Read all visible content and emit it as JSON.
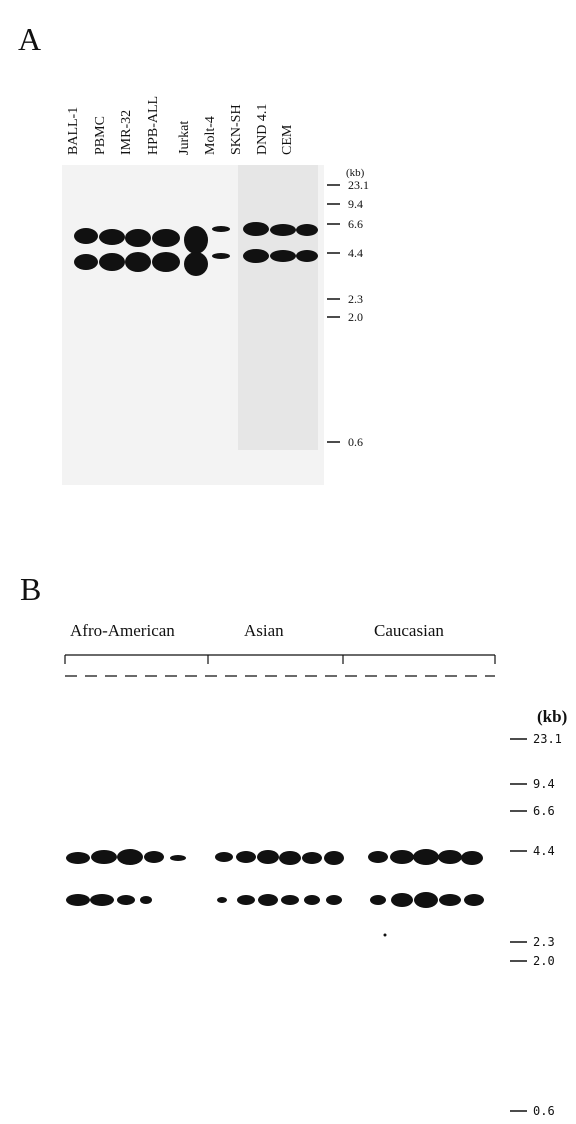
{
  "panel_a": {
    "label": "A",
    "lanes": [
      "BALL-1",
      "PBMC",
      "IMR-32",
      "HPB-ALL",
      "Jurkat",
      "Molt-4",
      "SKN-SH",
      "DND 4.1",
      "CEM"
    ],
    "unit": "(kb)",
    "markers": [
      "23.1",
      "9.4",
      "6.6",
      "4.4",
      "2.3",
      "2.0",
      "0.6"
    ]
  },
  "panel_b": {
    "label": "B",
    "groups": [
      "Afro-American",
      "Asian",
      "Caucasian"
    ],
    "unit": "(kb)",
    "markers": [
      "23.1",
      "9.4",
      "6.6",
      "4.4",
      "2.3",
      "2.0",
      "0.6"
    ]
  }
}
